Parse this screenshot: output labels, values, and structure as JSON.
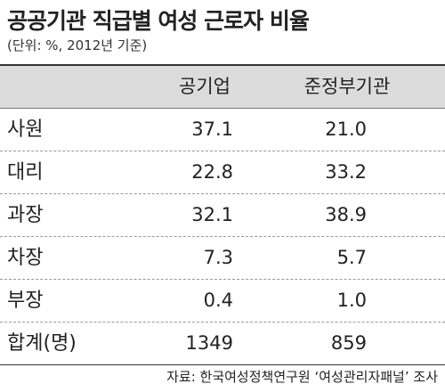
{
  "title": "공공기관 직급별 여성 근로자 비율",
  "subtitle": "(단위: %, 2012년 기준)",
  "table": {
    "columns": [
      "공기업",
      "준정부기관"
    ],
    "rows": [
      [
        "사원",
        "37.1",
        "21.0"
      ],
      [
        "대리",
        "22.8",
        "33.2"
      ],
      [
        "과장",
        "32.1",
        "38.9"
      ],
      [
        "차장",
        "7.3",
        "5.7"
      ],
      [
        "부장",
        "0.4",
        "1.0"
      ],
      [
        "합계(명)",
        "1349",
        "859"
      ]
    ]
  },
  "source": "자료: 한국여성정책연구원 ‘여성관리자패널’ 조사"
}
